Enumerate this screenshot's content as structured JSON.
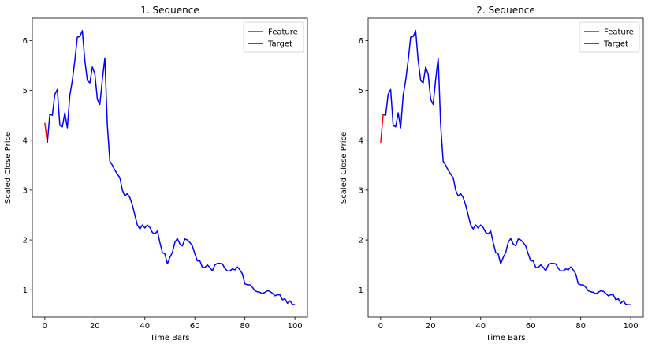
{
  "chart_data": [
    {
      "type": "line",
      "title": "1. Sequence",
      "xlabel": "Time Bars",
      "ylabel": "Scaled Close Price",
      "xlim": [
        -5,
        105
      ],
      "ylim": [
        0.45,
        6.45
      ],
      "xticks": [
        "0",
        "20",
        "40",
        "60",
        "80",
        "100"
      ],
      "yticks": [
        "1",
        "2",
        "3",
        "4",
        "5",
        "6"
      ],
      "legend_position": "top-right",
      "series": [
        {
          "name": "Feature",
          "color": "#ff0000",
          "x": [
            0,
            1
          ],
          "y": [
            4.35,
            3.95
          ]
        },
        {
          "name": "Target",
          "color": "#0000ff",
          "x": [
            1,
            2,
            3,
            4,
            5,
            6,
            7,
            8,
            9,
            10,
            11,
            12,
            13,
            14,
            15,
            16,
            17,
            18,
            19,
            20,
            21,
            22,
            23,
            24,
            25,
            26,
            27,
            28,
            29,
            30,
            31,
            32,
            33,
            34,
            35,
            36,
            37,
            38,
            39,
            40,
            41,
            42,
            43,
            44,
            45,
            46,
            47,
            48,
            49,
            50,
            51,
            52,
            53,
            54,
            55,
            56,
            57,
            58,
            59,
            60,
            61,
            62,
            63,
            64,
            65,
            66,
            67,
            68,
            69,
            70,
            71,
            72,
            73,
            74,
            75,
            76,
            77,
            78,
            79,
            80,
            81,
            82,
            83,
            84,
            85,
            86,
            87,
            88,
            89,
            90,
            91,
            92,
            93,
            94,
            95,
            96,
            97,
            98,
            99,
            100
          ],
          "y": [
            3.95,
            4.52,
            4.5,
            4.92,
            5.02,
            4.3,
            4.27,
            4.55,
            4.25,
            4.9,
            5.2,
            5.6,
            6.07,
            6.08,
            6.2,
            5.6,
            5.2,
            5.15,
            5.47,
            5.33,
            4.82,
            4.72,
            5.22,
            5.65,
            4.3,
            3.58,
            3.5,
            3.4,
            3.32,
            3.25,
            3.0,
            2.88,
            2.93,
            2.85,
            2.7,
            2.5,
            2.3,
            2.22,
            2.3,
            2.24,
            2.3,
            2.25,
            2.15,
            2.12,
            2.18,
            1.95,
            1.75,
            1.72,
            1.52,
            1.65,
            1.75,
            1.95,
            2.03,
            1.92,
            1.88,
            2.02,
            2.0,
            1.95,
            1.88,
            1.72,
            1.58,
            1.58,
            1.45,
            1.45,
            1.5,
            1.45,
            1.38,
            1.5,
            1.53,
            1.53,
            1.52,
            1.43,
            1.38,
            1.38,
            1.42,
            1.4,
            1.46,
            1.4,
            1.32,
            1.12,
            1.1,
            1.1,
            1.05,
            0.98,
            0.96,
            0.95,
            0.92,
            0.95,
            0.98,
            0.97,
            0.93,
            0.88,
            0.9,
            0.9,
            0.8,
            0.82,
            0.73,
            0.78,
            0.71,
            0.7
          ]
        }
      ]
    },
    {
      "type": "line",
      "title": "2. Sequence",
      "xlabel": "Time Bars",
      "ylabel": "Scaled Close Price",
      "xlim": [
        -5,
        105
      ],
      "ylim": [
        0.45,
        6.45
      ],
      "xticks": [
        "0",
        "20",
        "40",
        "60",
        "80",
        "100"
      ],
      "yticks": [
        "1",
        "2",
        "3",
        "4",
        "5",
        "6"
      ],
      "legend_position": "top-right",
      "series": [
        {
          "name": "Feature",
          "color": "#ff0000",
          "x": [
            0,
            1
          ],
          "y": [
            3.95,
            4.52
          ]
        },
        {
          "name": "Target",
          "color": "#0000ff",
          "x": [
            1,
            2,
            3,
            4,
            5,
            6,
            7,
            8,
            9,
            10,
            11,
            12,
            13,
            14,
            15,
            16,
            17,
            18,
            19,
            20,
            21,
            22,
            23,
            24,
            25,
            26,
            27,
            28,
            29,
            30,
            31,
            32,
            33,
            34,
            35,
            36,
            37,
            38,
            39,
            40,
            41,
            42,
            43,
            44,
            45,
            46,
            47,
            48,
            49,
            50,
            51,
            52,
            53,
            54,
            55,
            56,
            57,
            58,
            59,
            60,
            61,
            62,
            63,
            64,
            65,
            66,
            67,
            68,
            69,
            70,
            71,
            72,
            73,
            74,
            75,
            76,
            77,
            78,
            79,
            80,
            81,
            82,
            83,
            84,
            85,
            86,
            87,
            88,
            89,
            90,
            91,
            92,
            93,
            94,
            95,
            96,
            97,
            98,
            99,
            100
          ],
          "y": [
            4.52,
            4.5,
            4.92,
            5.02,
            4.3,
            4.27,
            4.55,
            4.25,
            4.9,
            5.2,
            5.6,
            6.07,
            6.08,
            6.2,
            5.6,
            5.2,
            5.15,
            5.47,
            5.33,
            4.82,
            4.72,
            5.22,
            5.65,
            4.3,
            3.58,
            3.5,
            3.4,
            3.32,
            3.25,
            3.0,
            2.88,
            2.93,
            2.85,
            2.7,
            2.5,
            2.3,
            2.22,
            2.3,
            2.24,
            2.3,
            2.25,
            2.15,
            2.12,
            2.18,
            1.95,
            1.75,
            1.72,
            1.52,
            1.65,
            1.75,
            1.95,
            2.03,
            1.92,
            1.88,
            2.02,
            2.0,
            1.95,
            1.88,
            1.72,
            1.58,
            1.58,
            1.45,
            1.45,
            1.5,
            1.45,
            1.38,
            1.5,
            1.53,
            1.53,
            1.52,
            1.43,
            1.38,
            1.38,
            1.42,
            1.4,
            1.46,
            1.4,
            1.32,
            1.12,
            1.1,
            1.1,
            1.05,
            0.98,
            0.96,
            0.95,
            0.92,
            0.95,
            0.98,
            0.97,
            0.93,
            0.88,
            0.9,
            0.9,
            0.8,
            0.82,
            0.73,
            0.78,
            0.71,
            0.7,
            0.7
          ]
        }
      ]
    }
  ]
}
